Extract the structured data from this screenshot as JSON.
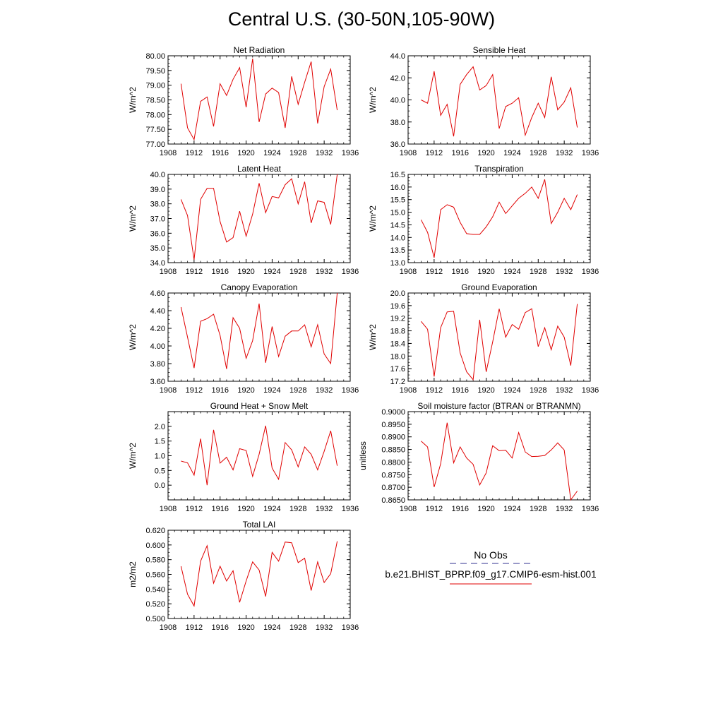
{
  "title": "Central U.S. (30-50N,105-90W)",
  "legend": {
    "obs_label": "No Obs",
    "obs_color": "#303090",
    "model_label": "b.e21.BHIST_BPRP.f09_g17.CMIP6-esm-hist.001",
    "model_color": "#e00000"
  },
  "chart_data": [
    {
      "type": "line",
      "title": "Net Radiation",
      "ylabel": "W/m^2",
      "xlim": [
        1908,
        1936
      ],
      "xticks": [
        "1908",
        "1912",
        "1916",
        "1920",
        "1924",
        "1928",
        "1932",
        "1936"
      ],
      "ylim": [
        77.0,
        80.0
      ],
      "yticks": [
        "77.00",
        "77.50",
        "78.00",
        "78.50",
        "79.00",
        "79.50",
        "80.00"
      ],
      "x": [
        1910,
        1911,
        1912,
        1913,
        1914,
        1915,
        1916,
        1917,
        1918,
        1919,
        1920,
        1921,
        1922,
        1923,
        1924,
        1925,
        1926,
        1927,
        1928,
        1929,
        1930,
        1931,
        1932,
        1933,
        1934
      ],
      "series": [
        {
          "values": [
            79.05,
            77.55,
            77.15,
            78.45,
            78.6,
            77.6,
            79.05,
            78.65,
            79.2,
            79.6,
            78.25,
            79.9,
            77.75,
            78.7,
            78.9,
            78.75,
            77.55,
            79.3,
            78.35,
            79.1,
            79.8,
            77.7,
            78.95,
            79.55,
            78.15
          ]
        }
      ]
    },
    {
      "type": "line",
      "title": "Sensible Heat",
      "ylabel": "W/m^2",
      "xlim": [
        1908,
        1936
      ],
      "xticks": [
        "1908",
        "1912",
        "1916",
        "1920",
        "1924",
        "1928",
        "1932",
        "1936"
      ],
      "ylim": [
        36.0,
        44.0
      ],
      "yticks": [
        "36.0",
        "38.0",
        "40.0",
        "42.0",
        "44.0"
      ],
      "x": [
        1910,
        1911,
        1912,
        1913,
        1914,
        1915,
        1916,
        1917,
        1918,
        1919,
        1920,
        1921,
        1922,
        1923,
        1924,
        1925,
        1926,
        1927,
        1928,
        1929,
        1930,
        1931,
        1932,
        1933,
        1934
      ],
      "series": [
        {
          "values": [
            40.0,
            39.7,
            42.6,
            38.6,
            39.6,
            36.7,
            41.4,
            42.3,
            43.0,
            40.9,
            41.3,
            42.3,
            37.4,
            39.4,
            39.7,
            40.2,
            36.8,
            38.4,
            39.7,
            38.4,
            42.1,
            39.1,
            39.8,
            41.1,
            37.5
          ]
        }
      ]
    },
    {
      "type": "line",
      "title": "Latent Heat",
      "ylabel": "W/m^2",
      "xlim": [
        1908,
        1936
      ],
      "xticks": [
        "1908",
        "1912",
        "1916",
        "1920",
        "1924",
        "1928",
        "1932",
        "1936"
      ],
      "ylim": [
        34.0,
        40.0
      ],
      "yticks": [
        "34.0",
        "35.0",
        "36.0",
        "37.0",
        "38.0",
        "39.0",
        "40.0"
      ],
      "x": [
        1910,
        1911,
        1912,
        1913,
        1914,
        1915,
        1916,
        1917,
        1918,
        1919,
        1920,
        1921,
        1922,
        1923,
        1924,
        1925,
        1926,
        1927,
        1928,
        1929,
        1930,
        1931,
        1932,
        1933,
        1934
      ],
      "series": [
        {
          "values": [
            38.3,
            37.2,
            34.2,
            38.3,
            39.05,
            39.05,
            36.8,
            35.4,
            35.7,
            37.5,
            35.8,
            37.3,
            39.4,
            37.4,
            38.5,
            38.4,
            39.3,
            39.7,
            38.0,
            39.5,
            36.7,
            38.2,
            38.1,
            36.6,
            40.0
          ]
        }
      ]
    },
    {
      "type": "line",
      "title": "Transpiration",
      "ylabel": "W/m^2",
      "xlim": [
        1908,
        1936
      ],
      "xticks": [
        "1908",
        "1912",
        "1916",
        "1920",
        "1924",
        "1928",
        "1932",
        "1936"
      ],
      "ylim": [
        13.0,
        16.5
      ],
      "yticks": [
        "13.0",
        "13.5",
        "14.0",
        "14.5",
        "15.0",
        "15.5",
        "16.0",
        "16.5"
      ],
      "x": [
        1910,
        1911,
        1912,
        1913,
        1914,
        1915,
        1916,
        1917,
        1918,
        1919,
        1920,
        1921,
        1922,
        1923,
        1924,
        1925,
        1926,
        1927,
        1928,
        1929,
        1930,
        1931,
        1932,
        1933,
        1934
      ],
      "series": [
        {
          "values": [
            14.7,
            14.2,
            13.2,
            15.1,
            15.3,
            15.2,
            14.6,
            14.15,
            14.12,
            14.12,
            14.42,
            14.82,
            15.4,
            14.95,
            15.25,
            15.55,
            15.75,
            16.0,
            15.55,
            16.3,
            14.55,
            15.0,
            15.55,
            15.1,
            15.7
          ]
        }
      ]
    },
    {
      "type": "line",
      "title": "Canopy Evaporation",
      "ylabel": "W/m^2",
      "xlim": [
        1908,
        1936
      ],
      "xticks": [
        "1908",
        "1912",
        "1916",
        "1920",
        "1924",
        "1928",
        "1932",
        "1936"
      ],
      "ylim": [
        3.6,
        4.6
      ],
      "yticks": [
        "3.60",
        "3.80",
        "4.00",
        "4.20",
        "4.40",
        "4.60"
      ],
      "x": [
        1910,
        1911,
        1912,
        1913,
        1914,
        1915,
        1916,
        1917,
        1918,
        1919,
        1920,
        1921,
        1922,
        1923,
        1924,
        1925,
        1926,
        1927,
        1928,
        1929,
        1930,
        1931,
        1932,
        1933,
        1934
      ],
      "series": [
        {
          "values": [
            4.44,
            4.1,
            3.75,
            4.28,
            4.31,
            4.36,
            4.12,
            3.74,
            4.32,
            4.2,
            3.86,
            4.06,
            4.48,
            3.81,
            4.22,
            3.88,
            4.11,
            4.17,
            4.17,
            4.24,
            3.99,
            4.24,
            3.91,
            3.8,
            4.62
          ]
        }
      ]
    },
    {
      "type": "line",
      "title": "Ground Evaporation",
      "ylabel": "W/m^2",
      "xlim": [
        1908,
        1936
      ],
      "xticks": [
        "1908",
        "1912",
        "1916",
        "1920",
        "1924",
        "1928",
        "1932",
        "1936"
      ],
      "ylim": [
        17.2,
        20.0
      ],
      "yticks": [
        "17.2",
        "17.6",
        "18.0",
        "18.4",
        "18.8",
        "19.2",
        "19.6",
        "20.0"
      ],
      "x": [
        1910,
        1911,
        1912,
        1913,
        1914,
        1915,
        1916,
        1917,
        1918,
        1919,
        1920,
        1921,
        1922,
        1923,
        1924,
        1925,
        1926,
        1927,
        1928,
        1929,
        1930,
        1931,
        1932,
        1933,
        1934
      ],
      "series": [
        {
          "values": [
            19.1,
            18.85,
            17.35,
            18.9,
            19.4,
            19.42,
            18.1,
            17.5,
            17.25,
            19.15,
            17.5,
            18.45,
            19.5,
            18.6,
            19.0,
            18.85,
            19.38,
            19.5,
            18.3,
            18.9,
            18.2,
            18.95,
            18.6,
            17.7,
            19.65
          ]
        }
      ]
    },
    {
      "type": "line",
      "title": "Ground Heat + Snow Melt",
      "ylabel": "W/m^2",
      "xlim": [
        1908,
        1936
      ],
      "xticks": [
        "1908",
        "1912",
        "1916",
        "1920",
        "1924",
        "1928",
        "1932",
        "1936"
      ],
      "ylim": [
        -0.5,
        2.5
      ],
      "yticks": [
        "0.0",
        "0.5",
        "1.0",
        "1.5",
        "2.0"
      ],
      "ytick_values": [
        0.0,
        0.5,
        1.0,
        1.5,
        2.0
      ],
      "x": [
        1910,
        1911,
        1912,
        1913,
        1914,
        1915,
        1916,
        1917,
        1918,
        1919,
        1920,
        1921,
        1922,
        1923,
        1924,
        1925,
        1926,
        1927,
        1928,
        1929,
        1930,
        1931,
        1932,
        1933,
        1934
      ],
      "series": [
        {
          "values": [
            0.82,
            0.76,
            0.34,
            1.58,
            0.0,
            1.88,
            0.75,
            0.95,
            0.52,
            1.24,
            1.18,
            0.3,
            1.05,
            2.02,
            0.58,
            0.2,
            1.45,
            1.2,
            0.62,
            1.3,
            1.05,
            0.52,
            1.15,
            1.85,
            0.66
          ]
        }
      ]
    },
    {
      "type": "line",
      "title": "Soil moisture factor (BTRAN or BTRANMN)",
      "ylabel": "unitless",
      "xlim": [
        1908,
        1936
      ],
      "xticks": [
        "1908",
        "1912",
        "1916",
        "1920",
        "1924",
        "1928",
        "1932",
        "1936"
      ],
      "ylim": [
        0.865,
        0.9
      ],
      "yticks": [
        "0.8650",
        "0.8700",
        "0.8750",
        "0.8800",
        "0.8850",
        "0.8900",
        "0.8950",
        "0.9000"
      ],
      "x": [
        1910,
        1911,
        1912,
        1913,
        1914,
        1915,
        1916,
        1917,
        1918,
        1919,
        1920,
        1921,
        1922,
        1923,
        1924,
        1925,
        1926,
        1927,
        1928,
        1929,
        1930,
        1931,
        1932,
        1933,
        1934
      ],
      "series": [
        {
          "values": [
            0.8883,
            0.886,
            0.8701,
            0.8793,
            0.8956,
            0.8797,
            0.886,
            0.8816,
            0.8791,
            0.8709,
            0.8757,
            0.8865,
            0.8845,
            0.8847,
            0.8816,
            0.8917,
            0.884,
            0.8822,
            0.8823,
            0.8826,
            0.8848,
            0.8876,
            0.8848,
            0.865,
            0.8685
          ]
        }
      ]
    },
    {
      "type": "line",
      "title": "Total LAI",
      "ylabel": "m2/m2",
      "xlim": [
        1908,
        1936
      ],
      "xticks": [
        "1908",
        "1912",
        "1916",
        "1920",
        "1924",
        "1928",
        "1932",
        "1936"
      ],
      "ylim": [
        0.5,
        0.62
      ],
      "yticks": [
        "0.500",
        "0.520",
        "0.540",
        "0.560",
        "0.580",
        "0.600",
        "0.620"
      ],
      "x": [
        1910,
        1911,
        1912,
        1913,
        1914,
        1915,
        1916,
        1917,
        1918,
        1919,
        1920,
        1921,
        1922,
        1923,
        1924,
        1925,
        1926,
        1927,
        1928,
        1929,
        1930,
        1931,
        1932,
        1933,
        1934
      ],
      "series": [
        {
          "values": [
            0.571,
            0.533,
            0.517,
            0.578,
            0.599,
            0.548,
            0.571,
            0.551,
            0.565,
            0.522,
            0.551,
            0.577,
            0.566,
            0.53,
            0.59,
            0.578,
            0.604,
            0.603,
            0.576,
            0.582,
            0.538,
            0.577,
            0.549,
            0.561,
            0.605
          ]
        }
      ]
    }
  ]
}
